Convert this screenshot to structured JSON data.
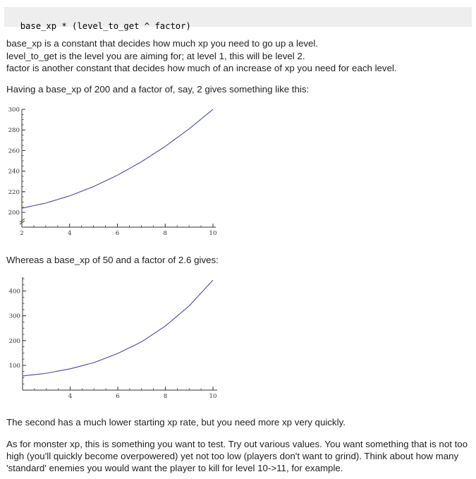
{
  "formula": {
    "code": "base_xp * (level_to_get ^ factor)"
  },
  "definitions": {
    "line1": "base_xp is a constant that decides how much xp you need to go up a level.",
    "line2": "level_to_get is the level you are aiming for; at level 1, this will be level 2.",
    "line3": "factor is another constant that decides how much of an increase of xp you need for each level."
  },
  "intro_chart1": "Having a base_xp of 200 and a factor of, say, 2 gives something like this:",
  "intro_chart2": "Whereas a base_xp of 50 and a factor of 2.6 gives:",
  "closing_line": "The second has a much lower starting xp rate, but you need more xp very quickly.",
  "monster_paragraph": "As for monster xp, this is something you want to test. Try out various values. You want something that is not too high (you'll quickly become overpowered) yet not too low (players don't want to grind). Think about how many 'standard' enemies you would want the player to kill for level 10->11, for example.",
  "chart_data": [
    {
      "type": "line",
      "line_color": "#4b4b9e",
      "xlim": [
        2,
        10
      ],
      "ylim": [
        200,
        300
      ],
      "x_ticks": [
        2,
        4,
        6,
        8,
        10
      ],
      "y_ticks": [
        200,
        220,
        240,
        260,
        280,
        300
      ],
      "x_tick_labels": [
        "2",
        "4",
        "6",
        "8",
        "10"
      ],
      "y_tick_labels": [
        "200",
        "220",
        "240",
        "260",
        "280",
        "300"
      ],
      "y_axis_break": true,
      "series": [
        {
          "x": [
            2,
            3,
            4,
            5,
            6,
            7,
            8,
            9,
            10
          ],
          "y": [
            204,
            209,
            216,
            225,
            236,
            249,
            264,
            281,
            300
          ]
        }
      ]
    },
    {
      "type": "line",
      "line_color": "#4b4b9e",
      "xlim": [
        2,
        10
      ],
      "ylim": [
        0,
        450
      ],
      "x_ticks": [
        4,
        6,
        8,
        10
      ],
      "y_ticks": [
        100,
        200,
        300,
        400
      ],
      "x_tick_labels": [
        "4",
        "6",
        "8",
        "10"
      ],
      "y_tick_labels": [
        "100",
        "200",
        "300",
        "400"
      ],
      "y_axis_break": false,
      "series": [
        {
          "x": [
            2,
            3,
            4,
            5,
            6,
            7,
            8,
            9,
            10
          ],
          "y": [
            57,
            68,
            86,
            111,
            148,
            195,
            259,
            340,
            444
          ]
        }
      ]
    }
  ]
}
